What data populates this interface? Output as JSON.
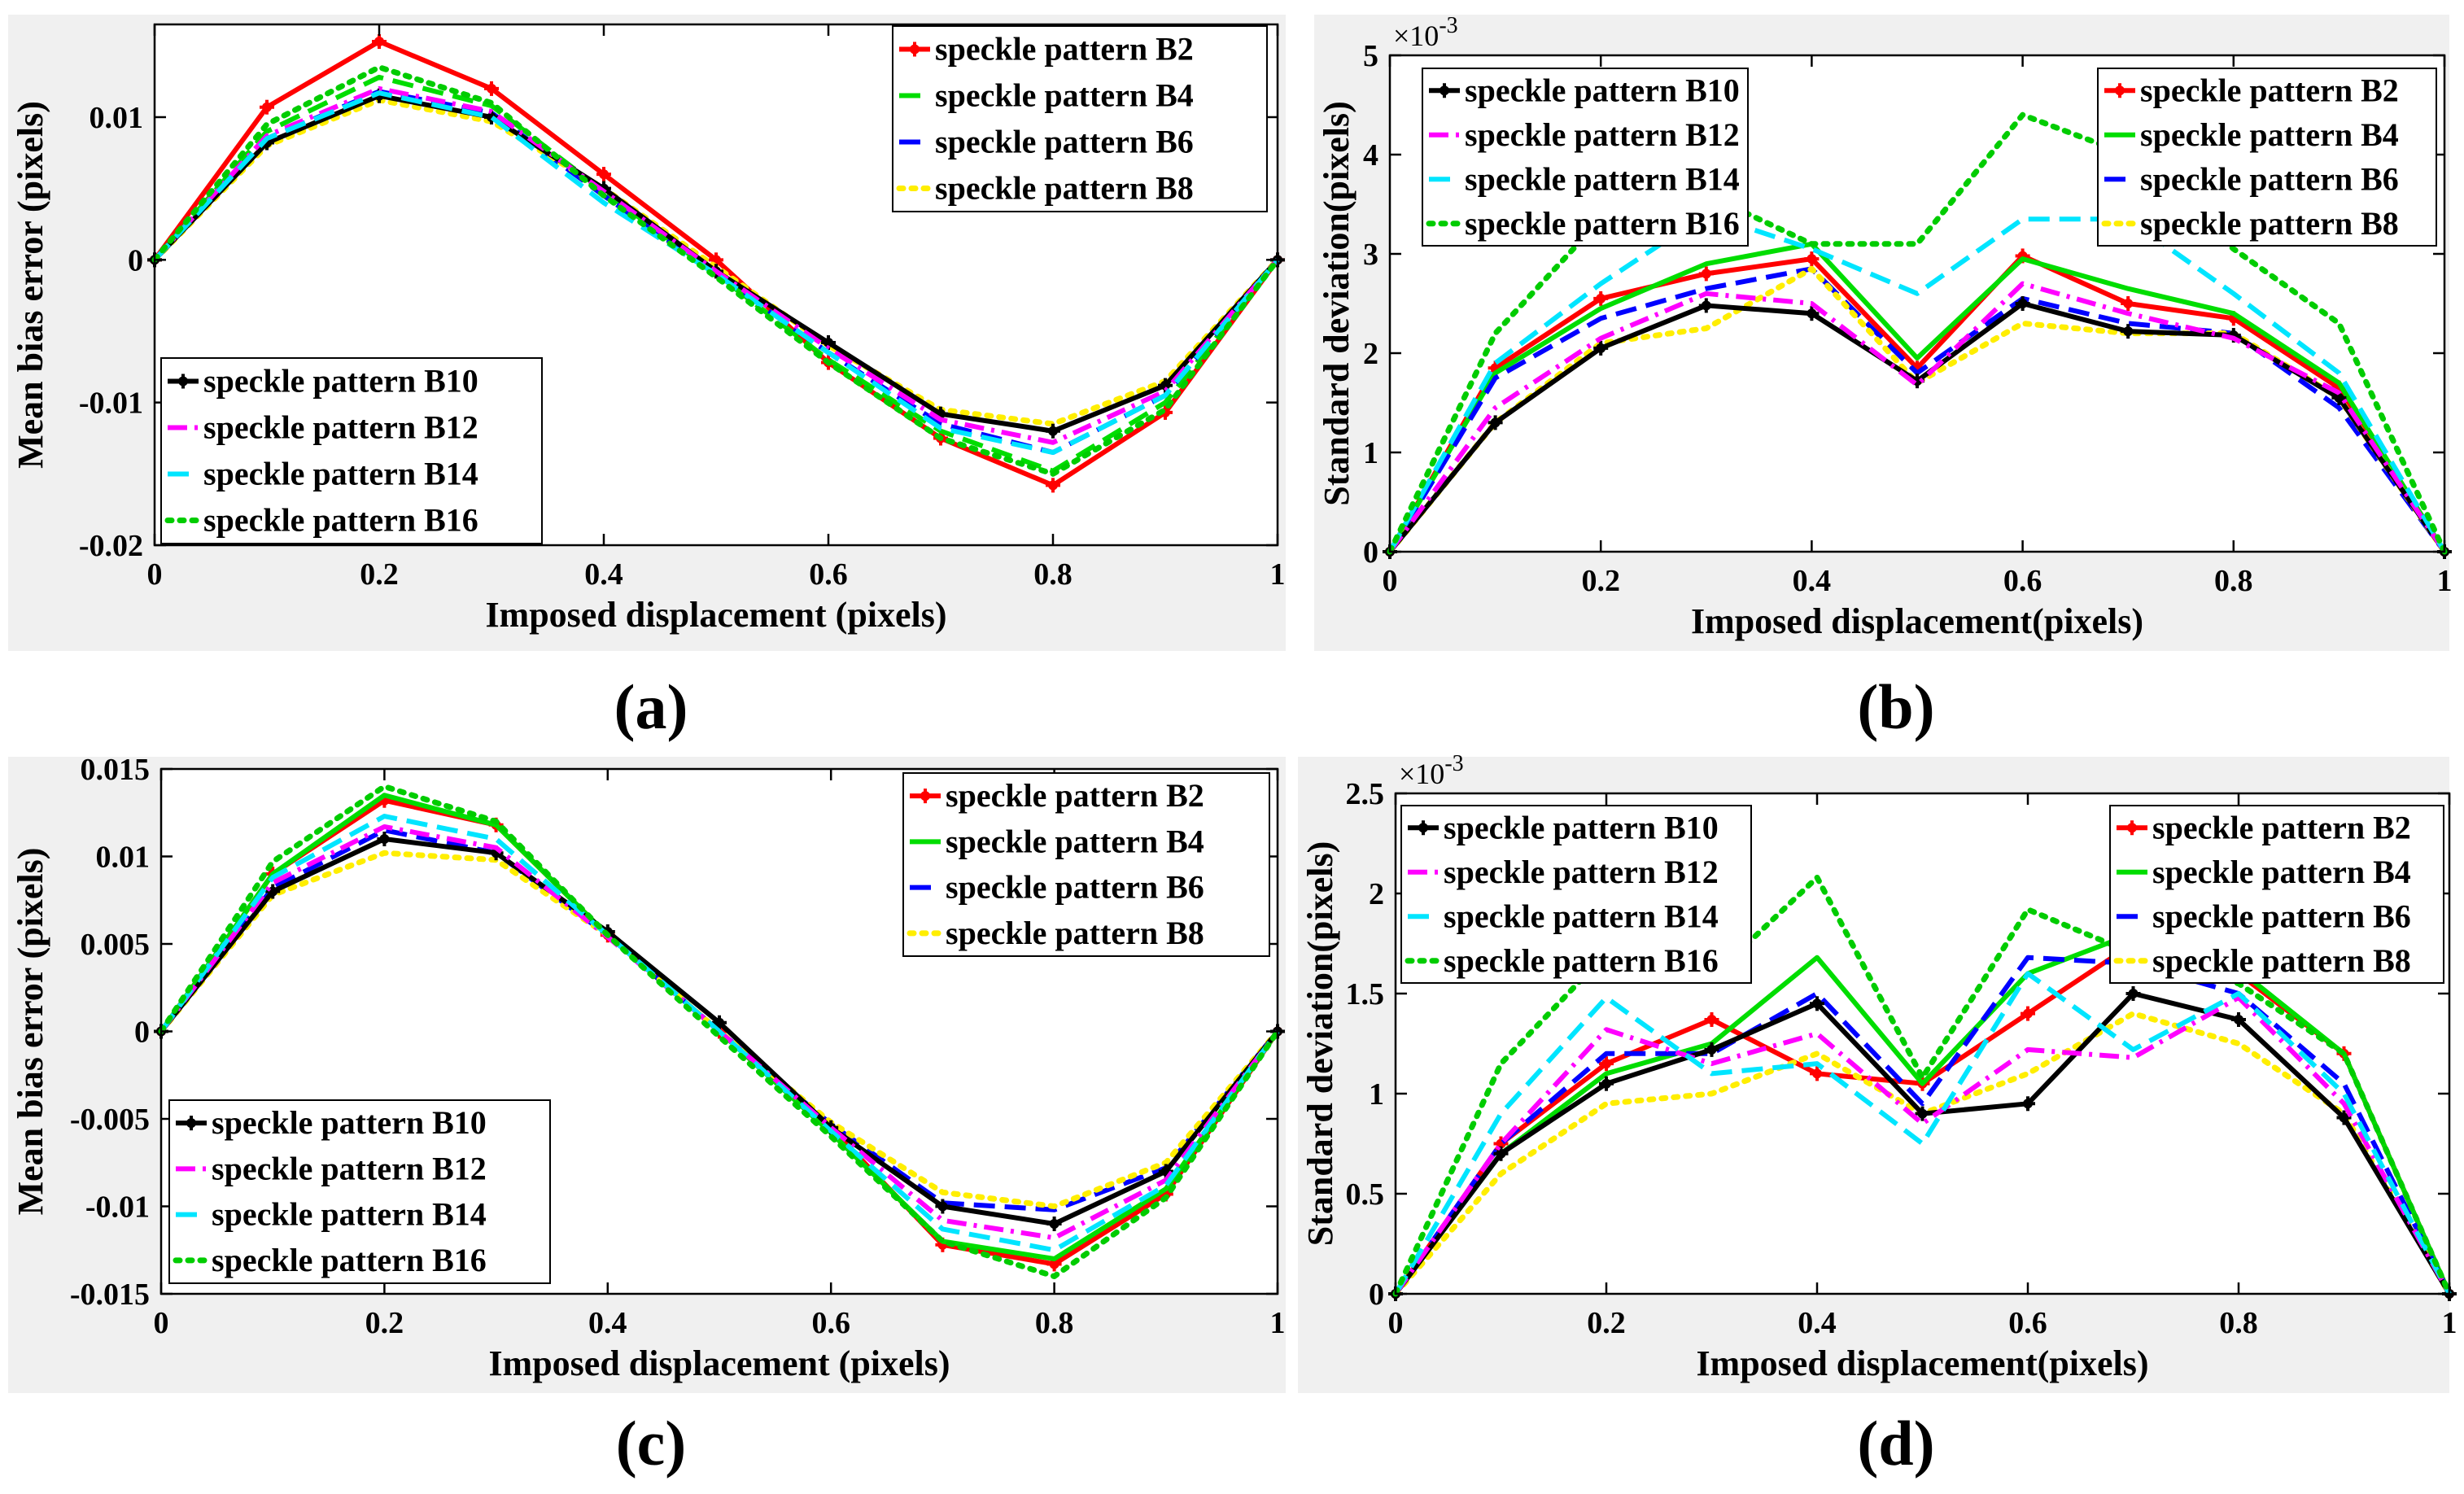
{
  "colors": {
    "B2": "#ff0000",
    "B4": "#00dd00",
    "B6": "#0000ff",
    "B8": "#ffee00",
    "B10": "#000000",
    "B12": "#ff00ff",
    "B14": "#00e5ff",
    "B16": "#00cc00",
    "panel_background": "#f0f0f0",
    "axes_background": "#ffffff"
  },
  "chart_data": [
    {
      "panel": "(a)",
      "type": "line",
      "caption": "(a)",
      "xlabel": "Imposed displacement (pixels)",
      "ylabel": "Mean bias error (pixels)",
      "xlim": [
        0,
        1
      ],
      "ylim": [
        -0.02,
        0.0165
      ],
      "xticks": [
        0,
        0.2,
        0.4,
        0.6,
        0.8,
        1
      ],
      "xtick_labels": [
        "0",
        "0.2",
        "0.4",
        "0.6",
        "0.8",
        "1"
      ],
      "yticks": [
        -0.02,
        -0.01,
        0,
        0.01
      ],
      "ytick_labels": [
        "-0.02",
        "-0.01",
        "0",
        "0.01"
      ],
      "exponent_label": "",
      "x": [
        0,
        0.1,
        0.2,
        0.3,
        0.4,
        0.5,
        0.6,
        0.7,
        0.8,
        0.9,
        1
      ],
      "legend_groups": [
        {
          "location": "top-right",
          "series": [
            "B2",
            "B4",
            "B6",
            "B8"
          ]
        },
        {
          "location": "bottom-left",
          "series": [
            "B10",
            "B12",
            "B14",
            "B16"
          ]
        }
      ],
      "series": [
        {
          "key": "B2",
          "name": "speckle pattern B2",
          "style": "solid-marker",
          "values": [
            0,
            0.0107,
            0.0153,
            0.012,
            0.006,
            0,
            -0.0072,
            -0.0125,
            -0.0158,
            -0.0107,
            0
          ]
        },
        {
          "key": "B4",
          "name": "speckle pattern B4",
          "style": "dash",
          "values": [
            0,
            0.009,
            0.0128,
            0.0108,
            0.0048,
            -0.001,
            -0.007,
            -0.012,
            -0.0148,
            -0.01,
            0
          ]
        },
        {
          "key": "B6",
          "name": "speckle pattern B6",
          "style": "dash",
          "values": [
            0,
            0.0085,
            0.0118,
            0.0103,
            0.0045,
            -0.001,
            -0.0065,
            -0.0115,
            -0.0135,
            -0.0095,
            0
          ]
        },
        {
          "key": "B8",
          "name": "speckle pattern B8",
          "style": "dot",
          "values": [
            0,
            0.008,
            0.0112,
            0.0097,
            0.005,
            -0.0005,
            -0.006,
            -0.0105,
            -0.0115,
            -0.0085,
            0
          ]
        },
        {
          "key": "B10",
          "name": "speckle pattern B10",
          "style": "solid-marker",
          "values": [
            0,
            0.0082,
            0.0115,
            0.01,
            0.005,
            -0.0008,
            -0.0058,
            -0.0108,
            -0.012,
            -0.0088,
            0
          ]
        },
        {
          "key": "B12",
          "name": "speckle pattern B12",
          "style": "dashdot",
          "values": [
            0,
            0.0087,
            0.012,
            0.0104,
            0.0048,
            -0.0008,
            -0.0062,
            -0.0112,
            -0.0128,
            -0.0092,
            0
          ]
        },
        {
          "key": "B14",
          "name": "speckle pattern B14",
          "style": "dash",
          "values": [
            0,
            0.0085,
            0.0117,
            0.01,
            0.004,
            -0.001,
            -0.0065,
            -0.0118,
            -0.0135,
            -0.0095,
            0
          ]
        },
        {
          "key": "B16",
          "name": "speckle pattern B16",
          "style": "dot",
          "values": [
            0,
            0.0095,
            0.0135,
            0.011,
            0.0045,
            -0.0012,
            -0.0072,
            -0.0125,
            -0.015,
            -0.0105,
            0
          ]
        }
      ]
    },
    {
      "panel": "(b)",
      "type": "line",
      "caption": "(b)",
      "xlabel": "Imposed displacement(pixels)",
      "ylabel": "Standard deviation(pixels)",
      "xlim": [
        0,
        1
      ],
      "ylim": [
        0,
        5
      ],
      "xticks": [
        0,
        0.2,
        0.4,
        0.6,
        0.8,
        1
      ],
      "xtick_labels": [
        "0",
        "0.2",
        "0.4",
        "0.6",
        "0.8",
        "1"
      ],
      "yticks": [
        0,
        1,
        2,
        3,
        4,
        5
      ],
      "ytick_labels": [
        "0",
        "1",
        "2",
        "3",
        "4",
        "5"
      ],
      "exponent_label": "×10",
      "exponent_power": "-3",
      "x": [
        0,
        0.1,
        0.2,
        0.3,
        0.4,
        0.5,
        0.6,
        0.7,
        0.8,
        0.9,
        1
      ],
      "legend_groups": [
        {
          "location": "top-left",
          "series": [
            "B10",
            "B12",
            "B14",
            "B16"
          ]
        },
        {
          "location": "top-right",
          "series": [
            "B2",
            "B4",
            "B6",
            "B8"
          ]
        }
      ],
      "series": [
        {
          "key": "B2",
          "name": "speckle pattern B2",
          "style": "solid-marker",
          "values": [
            0,
            1.85,
            2.55,
            2.8,
            2.95,
            1.85,
            2.98,
            2.5,
            2.35,
            1.65,
            0
          ]
        },
        {
          "key": "B4",
          "name": "speckle pattern B4",
          "style": "solid",
          "values": [
            0,
            1.8,
            2.45,
            2.9,
            3.1,
            1.95,
            2.95,
            2.65,
            2.4,
            1.7,
            0
          ]
        },
        {
          "key": "B6",
          "name": "speckle pattern B6",
          "style": "dash",
          "values": [
            0,
            1.75,
            2.35,
            2.65,
            2.85,
            1.8,
            2.55,
            2.3,
            2.2,
            1.45,
            0
          ]
        },
        {
          "key": "B8",
          "name": "speckle pattern B8",
          "style": "dot",
          "values": [
            0,
            1.3,
            2.1,
            2.25,
            2.85,
            1.7,
            2.3,
            2.2,
            2.2,
            1.55,
            0
          ]
        },
        {
          "key": "B10",
          "name": "speckle pattern B10",
          "style": "solid-marker",
          "values": [
            0,
            1.3,
            2.05,
            2.48,
            2.4,
            1.72,
            2.5,
            2.22,
            2.18,
            1.55,
            0
          ]
        },
        {
          "key": "B12",
          "name": "speckle pattern B12",
          "style": "dashdot",
          "values": [
            0,
            1.45,
            2.15,
            2.6,
            2.5,
            1.68,
            2.7,
            2.4,
            2.15,
            1.6,
            0
          ]
        },
        {
          "key": "B14",
          "name": "speckle pattern B14",
          "style": "dash",
          "values": [
            0,
            1.9,
            2.7,
            3.4,
            3.05,
            2.6,
            3.35,
            3.35,
            2.6,
            1.8,
            0
          ]
        },
        {
          "key": "B16",
          "name": "speckle pattern B16",
          "style": "dot",
          "values": [
            0,
            2.2,
            3.35,
            3.6,
            3.1,
            3.1,
            4.4,
            4.0,
            3.05,
            2.3,
            0
          ]
        }
      ]
    },
    {
      "panel": "(c)",
      "type": "line",
      "caption": "(c)",
      "xlabel": "Imposed displacement (pixels)",
      "ylabel": "Mean bias error (pixels)",
      "xlim": [
        0,
        1
      ],
      "ylim": [
        -0.015,
        0.015
      ],
      "xticks": [
        0,
        0.2,
        0.4,
        0.6,
        0.8,
        1
      ],
      "xtick_labels": [
        "0",
        "0.2",
        "0.4",
        "0.6",
        "0.8",
        "1"
      ],
      "yticks": [
        -0.015,
        -0.01,
        -0.005,
        0,
        0.005,
        0.01,
        0.015
      ],
      "ytick_labels": [
        "-0.015",
        "-0.01",
        "-0.005",
        "0",
        "0.005",
        "0.01",
        "0.015"
      ],
      "exponent_label": "",
      "x": [
        0,
        0.1,
        0.2,
        0.3,
        0.4,
        0.5,
        0.6,
        0.7,
        0.8,
        0.9,
        1
      ],
      "legend_groups": [
        {
          "location": "top-right",
          "series": [
            "B2",
            "B4",
            "B6",
            "B8"
          ]
        },
        {
          "location": "bottom-left",
          "series": [
            "B10",
            "B12",
            "B14",
            "B16"
          ]
        }
      ],
      "series": [
        {
          "key": "B2",
          "name": "speckle pattern B2",
          "style": "solid-marker",
          "values": [
            0,
            0.009,
            0.0132,
            0.0118,
            0.0055,
            0,
            -0.0055,
            -0.0122,
            -0.0133,
            -0.0093,
            0
          ]
        },
        {
          "key": "B4",
          "name": "speckle pattern B4",
          "style": "solid",
          "values": [
            0,
            0.009,
            0.0135,
            0.0118,
            0.0055,
            0,
            -0.0058,
            -0.012,
            -0.013,
            -0.009,
            0
          ]
        },
        {
          "key": "B6",
          "name": "speckle pattern B6",
          "style": "dash",
          "values": [
            0,
            0.0082,
            0.0115,
            0.0102,
            0.0055,
            0,
            -0.0053,
            -0.0098,
            -0.0102,
            -0.0078,
            0
          ]
        },
        {
          "key": "B8",
          "name": "speckle pattern B8",
          "style": "dot",
          "values": [
            0,
            0.0078,
            0.0102,
            0.0098,
            0.0055,
            0,
            -0.0052,
            -0.0092,
            -0.01,
            -0.0075,
            0
          ]
        },
        {
          "key": "B10",
          "name": "speckle pattern B10",
          "style": "solid-marker",
          "values": [
            0,
            0.008,
            0.011,
            0.0102,
            0.0057,
            0.0005,
            -0.0055,
            -0.01,
            -0.011,
            -0.008,
            0
          ]
        },
        {
          "key": "B12",
          "name": "speckle pattern B12",
          "style": "dashdot",
          "values": [
            0,
            0.0085,
            0.0117,
            0.0105,
            0.0054,
            0,
            -0.0055,
            -0.0108,
            -0.0118,
            -0.0085,
            0
          ]
        },
        {
          "key": "B14",
          "name": "speckle pattern B14",
          "style": "dash",
          "values": [
            0,
            0.0088,
            0.0123,
            0.011,
            0.0055,
            0,
            -0.0057,
            -0.0113,
            -0.0125,
            -0.0088,
            0
          ]
        },
        {
          "key": "B16",
          "name": "speckle pattern B16",
          "style": "dot",
          "values": [
            0,
            0.0097,
            0.014,
            0.012,
            0.0055,
            -0.0003,
            -0.006,
            -0.012,
            -0.014,
            -0.0095,
            0
          ]
        }
      ]
    },
    {
      "panel": "(d)",
      "type": "line",
      "caption": "(d)",
      "xlabel": "Imposed displacement(pixels)",
      "ylabel": "Standard deviation(pixels)",
      "xlim": [
        0,
        1
      ],
      "ylim": [
        0,
        2.5
      ],
      "xticks": [
        0,
        0.2,
        0.4,
        0.6,
        0.8,
        1
      ],
      "xtick_labels": [
        "0",
        "0.2",
        "0.4",
        "0.6",
        "0.8",
        "1"
      ],
      "yticks": [
        0,
        0.5,
        1,
        1.5,
        2,
        2.5
      ],
      "ytick_labels": [
        "0",
        "0.5",
        "1",
        "1.5",
        "2",
        "2.5"
      ],
      "exponent_label": "×10",
      "exponent_power": "-3",
      "x": [
        0,
        0.1,
        0.2,
        0.3,
        0.4,
        0.5,
        0.6,
        0.7,
        0.8,
        0.9,
        1
      ],
      "legend_groups": [
        {
          "location": "top-left",
          "series": [
            "B10",
            "B12",
            "B14",
            "B16"
          ]
        },
        {
          "location": "top-right",
          "series": [
            "B2",
            "B4",
            "B6",
            "B8"
          ]
        }
      ],
      "series": [
        {
          "key": "B2",
          "name": "speckle pattern B2",
          "style": "solid-marker",
          "values": [
            0,
            0.75,
            1.15,
            1.37,
            1.1,
            1.05,
            1.4,
            1.75,
            1.6,
            1.2,
            0
          ]
        },
        {
          "key": "B4",
          "name": "speckle pattern B4",
          "style": "solid",
          "values": [
            0,
            0.7,
            1.1,
            1.25,
            1.68,
            1.05,
            1.6,
            1.8,
            1.62,
            1.2,
            0
          ]
        },
        {
          "key": "B6",
          "name": "speckle pattern B6",
          "style": "dash",
          "values": [
            0,
            0.75,
            1.2,
            1.2,
            1.5,
            0.95,
            1.68,
            1.65,
            1.5,
            1.05,
            0
          ]
        },
        {
          "key": "B8",
          "name": "speckle pattern B8",
          "style": "dot",
          "values": [
            0,
            0.6,
            0.95,
            1.0,
            1.2,
            0.9,
            1.1,
            1.4,
            1.25,
            0.9,
            0
          ]
        },
        {
          "key": "B10",
          "name": "speckle pattern B10",
          "style": "solid-marker",
          "values": [
            0,
            0.7,
            1.05,
            1.22,
            1.45,
            0.9,
            0.95,
            1.5,
            1.37,
            0.88,
            0
          ]
        },
        {
          "key": "B12",
          "name": "speckle pattern B12",
          "style": "dashdot",
          "values": [
            0,
            0.75,
            1.32,
            1.15,
            1.3,
            0.85,
            1.22,
            1.18,
            1.48,
            0.95,
            0
          ]
        },
        {
          "key": "B14",
          "name": "speckle pattern B14",
          "style": "dash",
          "values": [
            0,
            0.9,
            1.48,
            1.1,
            1.15,
            0.75,
            1.6,
            1.22,
            1.5,
            1.0,
            0
          ]
        },
        {
          "key": "B16",
          "name": "speckle pattern B16",
          "style": "dot",
          "values": [
            0,
            1.15,
            1.7,
            1.58,
            2.08,
            1.08,
            1.92,
            1.7,
            1.55,
            1.2,
            0
          ]
        }
      ]
    }
  ]
}
